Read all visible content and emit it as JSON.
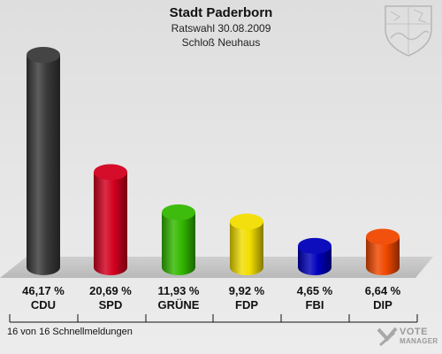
{
  "header": {
    "title": "Stadt Paderborn",
    "subtitle1": "Ratswahl 30.08.2009",
    "subtitle2": "Schloß Neuhaus"
  },
  "footer": {
    "text": "16 von 16 Schnellmeldungen"
  },
  "brand": {
    "name": "VOTE",
    "sub": "MANAGER"
  },
  "chart_data": {
    "type": "bar",
    "categories": [
      "CDU",
      "SPD",
      "GRÜNE",
      "FDP",
      "FBI",
      "DIP"
    ],
    "values": [
      46.17,
      20.69,
      11.93,
      9.92,
      4.65,
      6.64
    ],
    "value_labels": [
      "46,17 %",
      "20,69 %",
      "11,93 %",
      "9,92 %",
      "4,65 %",
      "6,64 %"
    ],
    "colors": [
      "#3a3a3a",
      "#d3001f",
      "#33b800",
      "#f2dd00",
      "#0000bb",
      "#f04800"
    ],
    "grid": false,
    "ylim": [
      0,
      46.17
    ]
  }
}
